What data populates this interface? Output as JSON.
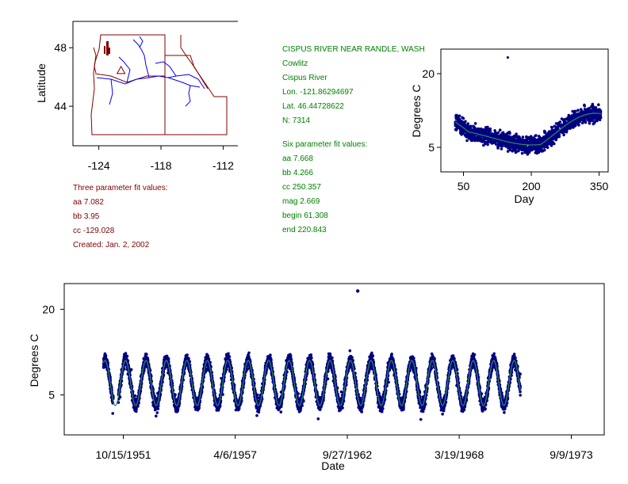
{
  "colors": {
    "map_border": "#800000",
    "rivers": "#0000ff",
    "station": "#800000",
    "points": "#000080",
    "fit": "#2e8b57",
    "header_text": "#008000",
    "fit3_text": "#800000"
  },
  "station": {
    "name": "CISPUS RIVER NEAR RANDLE, WASH",
    "basin": "Cowlitz",
    "river": "Cispus River",
    "lon": "Lon. -121.86294697",
    "lat": "Lat. 46.44728622",
    "n": "N: 7314"
  },
  "three_param": {
    "title": "Three parameter fit values:",
    "aa": "aa 7.082",
    "bb": "bb 3.95",
    "cc": "cc -129.028",
    "created": "Created:   Jan. 2, 2002"
  },
  "six_param": {
    "title": "Six parameter fit values:",
    "aa": "aa 7.668",
    "bb": "bb 4.266",
    "cc": "cc 250.357",
    "mag": "mag 2.669",
    "begin": "begin 61.308",
    "end": "end 220.843"
  },
  "chart_data": [
    {
      "id": "map",
      "type": "scatter",
      "title": "",
      "ylabel": "Latitude",
      "xlabel": "",
      "x_ticks": [
        -124,
        -118,
        -112
      ],
      "x_tick_labels": [
        "-124",
        "-118",
        "-112"
      ],
      "y_ticks": [
        44,
        48
      ],
      "y_tick_labels": [
        "44",
        "48"
      ],
      "xlim": [
        -126.5,
        -110.5
      ],
      "ylim": [
        41.3,
        49.8
      ],
      "station": {
        "lon": -121.86,
        "lat": 46.45,
        "marker": "triangle"
      }
    },
    {
      "id": "seasonal",
      "type": "scatter",
      "xlabel": "Day",
      "ylabel": "Degrees C",
      "x_ticks": [
        50,
        200,
        350
      ],
      "x_tick_labels": [
        "50",
        "200",
        "350"
      ],
      "y_ticks": [
        5,
        20
      ],
      "y_tick_labels": [
        "5",
        "20"
      ],
      "xlim": [
        0,
        370
      ],
      "ylim": [
        0,
        25
      ],
      "day_range": [
        32,
        355
      ],
      "spread": 1.8,
      "outliers": [
        {
          "day": 148,
          "temp": 23.3
        }
      ],
      "fit_model": "six_parameter",
      "fit_params": {
        "aa": 7.668,
        "bb": 4.266,
        "cc": 250.357,
        "mag": 2.669,
        "begin": 61.308,
        "end": 220.843
      }
    },
    {
      "id": "timeseries",
      "type": "line",
      "xlabel": "Date",
      "ylabel": "Degrees C",
      "x_tick_labels": [
        "10/15/1951",
        "4/6/1957",
        "9/27/1962",
        "3/19/1968",
        "9/9/1973"
      ],
      "x_ticks_year": [
        1951.79,
        1957.26,
        1962.74,
        1968.21,
        1973.69
      ],
      "y_ticks": [
        5,
        20
      ],
      "y_tick_labels": [
        "5",
        "20"
      ],
      "xlim_year": [
        1948.9,
        1975.3
      ],
      "ylim": [
        -2,
        24.5
      ],
      "data_years": [
        1950.82,
        1971.2
      ],
      "outliers": [
        {
          "year": 1963.25,
          "temp": 23.2
        }
      ],
      "fit_model": "three_parameter",
      "fit_params": {
        "aa": 7.082,
        "bb": 3.95,
        "cc": -129.028
      }
    }
  ]
}
